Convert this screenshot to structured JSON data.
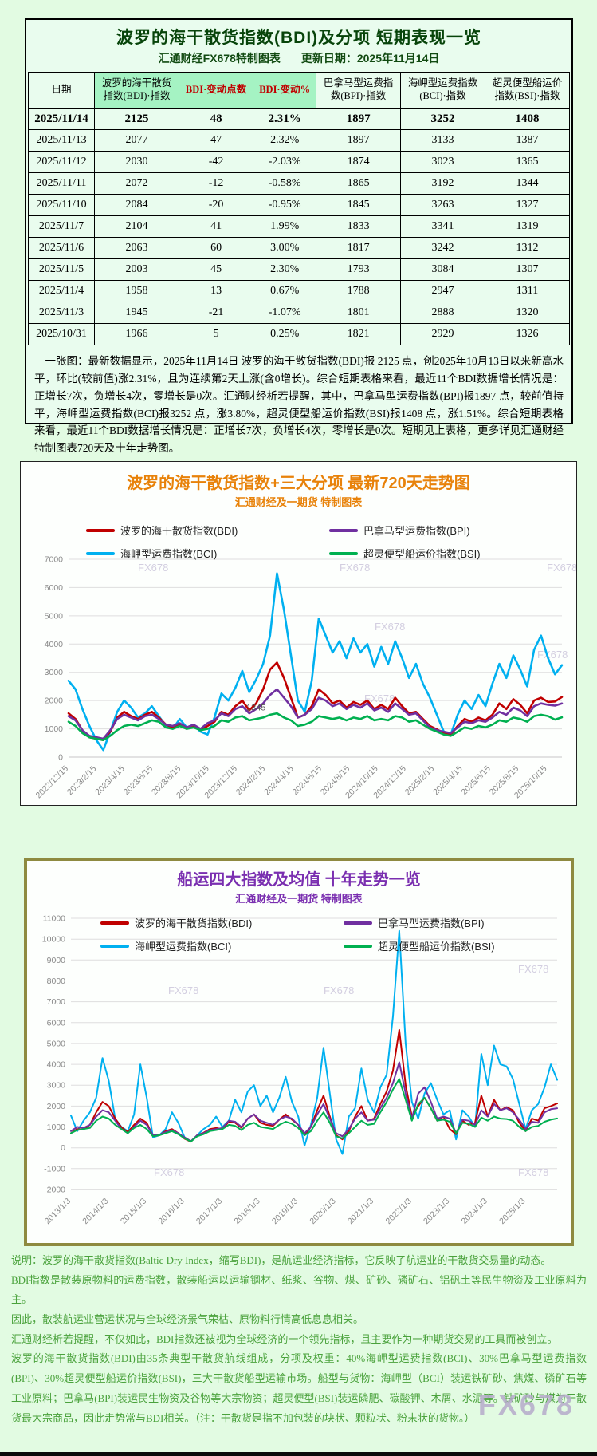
{
  "page": {
    "watermark": "FX678"
  },
  "top_panel": {
    "title": "波罗的海干散货指数(BDI)及分项  短期表现一览",
    "subtitle_left": "汇通财经FX678特制图表",
    "subtitle_right": "更新日期：2025年11月14日",
    "table": {
      "headers": [
        "日期",
        "波罗的海干散货\n指数(BDI)·指数",
        "BDI·变动点数",
        "BDI·变动%",
        "巴拿马型运费指\n数(BPI)·指数",
        "海岬型运费指数\n(BCI)·指数",
        "超灵便型船运价\n指数(BSI)·指数"
      ],
      "rows": [
        [
          "2025/11/14",
          "2125",
          "48",
          "2.31%",
          "1897",
          "3252",
          "1408"
        ],
        [
          "2025/11/13",
          "2077",
          "47",
          "2.32%",
          "1897",
          "3133",
          "1387"
        ],
        [
          "2025/11/12",
          "2030",
          "-42",
          "-2.03%",
          "1874",
          "3023",
          "1365"
        ],
        [
          "2025/11/11",
          "2072",
          "-12",
          "-0.58%",
          "1865",
          "3192",
          "1344"
        ],
        [
          "2025/11/10",
          "2084",
          "-20",
          "-0.95%",
          "1845",
          "3263",
          "1327"
        ],
        [
          "2025/11/7",
          "2104",
          "41",
          "1.99%",
          "1833",
          "3341",
          "1319"
        ],
        [
          "2025/11/6",
          "2063",
          "60",
          "3.00%",
          "1817",
          "3242",
          "1312"
        ],
        [
          "2025/11/5",
          "2003",
          "45",
          "2.30%",
          "1793",
          "3084",
          "1307"
        ],
        [
          "2025/11/4",
          "1958",
          "13",
          "0.67%",
          "1788",
          "2947",
          "1311"
        ],
        [
          "2025/11/3",
          "1945",
          "-21",
          "-1.07%",
          "1801",
          "2888",
          "1320"
        ],
        [
          "2025/10/31",
          "1966",
          "5",
          "0.25%",
          "1821",
          "2929",
          "1326"
        ]
      ]
    },
    "summary": "一张图：最新数据显示，2025年11月14日 波罗的海干散货指数(BDI)报 2125 点，创2025年10月13日以来新高水平，环比(较前值)涨2.31%，且为连续第2天上涨(含0增长)。综合短期表格来看，最近11个BDI数据增长情况是：正增长7次，负增长4次，零增长是0次。汇通财经析若提醒，其中，巴拿马型运费指数(BPI)报1897 点，较前值持平，海岬型运费指数(BCI)报3252 点，涨3.80%，超灵便型船运价指数(BSI)报1408 点，涨1.51%。综合短期表格来看，最近11个BDI数据增长情况是：正增长7次，负增长4次，零增长是0次。短期见上表格，更多详见汇通财经特制图表720天及十年走势图。"
  },
  "chart_data": [
    {
      "type": "line",
      "title": "波罗的海干散货指数+三大分项  最新720天走势图",
      "subtitle": "汇通财经及一期货  特制图表",
      "xlabel": "",
      "ylabel": "",
      "ylim": [
        0,
        7000
      ],
      "yticks": [
        0,
        1000,
        2000,
        3000,
        4000,
        5000,
        6000,
        7000
      ],
      "grid": true,
      "legend_position": "top-inside",
      "watermark": "FX678",
      "annotation": {
        "text": "1345",
        "xfrac": 0.38,
        "y": 1560
      },
      "xticklabels": [
        "2022/12/15",
        "2023/2/15",
        "2023/4/15",
        "2023/6/15",
        "2023/8/15",
        "2023/10/15",
        "2023/12/15",
        "2024/2/15",
        "2024/4/15",
        "2024/6/15",
        "2024/8/15",
        "2024/10/15",
        "2024/12/15",
        "2025/2/15",
        "2025/4/15",
        "2025/6/15",
        "2025/8/15",
        "2025/10/15"
      ],
      "xtick_span": 0.97,
      "series": [
        {
          "name": "波罗的海干散货指数(BDI)",
          "color": "#c00000",
          "values": [
            1550,
            1350,
            950,
            700,
            650,
            600,
            900,
            1400,
            1600,
            1450,
            1350,
            1500,
            1600,
            1400,
            1150,
            1050,
            1150,
            1000,
            1100,
            950,
            1100,
            1250,
            1600,
            1500,
            1800,
            2000,
            1650,
            1900,
            2400,
            3100,
            3346,
            2800,
            2100,
            1400,
            1500,
            1800,
            2400,
            2200,
            1900,
            2000,
            1750,
            1950,
            1850,
            2000,
            1700,
            1850,
            1700,
            2100,
            1800,
            1550,
            1600,
            1350,
            1100,
            980,
            850,
            800,
            1100,
            1350,
            1250,
            1400,
            1300,
            1500,
            1900,
            1700,
            2050,
            1850,
            1550,
            2000,
            2100,
            1950,
            1966,
            2125
          ]
        },
        {
          "name": "巴拿马型运费指数(BPI)",
          "color": "#7030a0",
          "values": [
            1450,
            1300,
            950,
            750,
            700,
            650,
            950,
            1350,
            1500,
            1400,
            1300,
            1450,
            1500,
            1350,
            1150,
            1100,
            1200,
            1050,
            1150,
            1000,
            1200,
            1300,
            1550,
            1450,
            1700,
            1800,
            1550,
            1700,
            1900,
            2200,
            2400,
            2100,
            1800,
            1400,
            1500,
            1700,
            2100,
            2000,
            1800,
            1900,
            1700,
            1850,
            1750,
            1900,
            1650,
            1750,
            1600,
            1900,
            1700,
            1500,
            1550,
            1300,
            1050,
            950,
            900,
            850,
            1050,
            1250,
            1200,
            1300,
            1250,
            1400,
            1600,
            1500,
            1750,
            1650,
            1450,
            1800,
            1900,
            1850,
            1821,
            1897
          ]
        },
        {
          "name": "海岬型运费指数(BCI)",
          "color": "#00b0f0",
          "values": [
            2700,
            2400,
            1700,
            1100,
            600,
            250,
            900,
            1600,
            2000,
            1750,
            1400,
            1550,
            1800,
            1450,
            1100,
            1000,
            1350,
            1050,
            1150,
            900,
            800,
            1400,
            2250,
            2000,
            2450,
            3050,
            2300,
            2750,
            3300,
            4300,
            6500,
            5200,
            3600,
            2000,
            1600,
            2700,
            4900,
            4300,
            3700,
            4100,
            3500,
            4200,
            3700,
            4000,
            3200,
            3900,
            3300,
            4100,
            3500,
            2800,
            3300,
            2600,
            2100,
            1500,
            900,
            800,
            1500,
            2000,
            1700,
            2200,
            1800,
            2600,
            3300,
            2800,
            3600,
            3100,
            2500,
            3800,
            4300,
            3500,
            2929,
            3252
          ]
        },
        {
          "name": "超灵便型船运价指数(BSI)",
          "color": "#00b050",
          "values": [
            1250,
            1100,
            850,
            700,
            650,
            600,
            750,
            950,
            1100,
            1150,
            1100,
            1200,
            1300,
            1250,
            1050,
            1000,
            1100,
            1000,
            1050,
            950,
            1000,
            1100,
            1300,
            1250,
            1400,
            1450,
            1300,
            1350,
            1400,
            1500,
            1550,
            1400,
            1300,
            1100,
            1150,
            1250,
            1450,
            1400,
            1350,
            1400,
            1300,
            1400,
            1350,
            1450,
            1300,
            1350,
            1300,
            1450,
            1400,
            1250,
            1300,
            1150,
            1000,
            900,
            800,
            750,
            900,
            1050,
            1000,
            1100,
            1050,
            1150,
            1300,
            1250,
            1400,
            1350,
            1250,
            1450,
            1500,
            1450,
            1326,
            1408
          ]
        }
      ]
    },
    {
      "type": "line",
      "title": "船运四大指数及均值 十年走势一览",
      "subtitle": "汇通财经及一期货 特制图表",
      "xlabel": "",
      "ylabel": "",
      "ylim": [
        -2000,
        11000
      ],
      "yticks": [
        -2000,
        -1000,
        0,
        1000,
        2000,
        3000,
        4000,
        5000,
        6000,
        7000,
        8000,
        9000,
        10000,
        11000
      ],
      "grid": true,
      "legend_position": "top-inside",
      "watermark": "FX678",
      "xticklabels": [
        "2013/1/3",
        "2014/1/3",
        "2015/1/3",
        "2016/1/3",
        "2017/1/3",
        "2018/1/3",
        "2019/1/3",
        "2020/1/3",
        "2021/1/3",
        "2022/1/3",
        "2023/1/3",
        "2024/1/3",
        "2025/1/3"
      ],
      "xtick_span": 0.935,
      "series": [
        {
          "name": "波罗的海干散货指数(BDI)",
          "color": "#c00000",
          "values": [
            700,
            900,
            880,
            1100,
            1700,
            2200,
            2000,
            1400,
            980,
            750,
            1100,
            1400,
            1200,
            560,
            600,
            800,
            900,
            700,
            430,
            290,
            600,
            720,
            900,
            950,
            900,
            1250,
            1200,
            960,
            1400,
            1600,
            1200,
            1100,
            1050,
            1350,
            1600,
            1350,
            1100,
            600,
            1000,
            1800,
            2500,
            1500,
            600,
            400,
            800,
            1500,
            2000,
            1300,
            1400,
            2100,
            2700,
            3700,
            5650,
            3000,
            1500,
            2000,
            2400,
            1900,
            1300,
            1500,
            900,
            650,
            1300,
            1100,
            1200,
            2500,
            1500,
            2300,
            1800,
            1950,
            1800,
            1200,
            800,
            1400,
            1300,
            1900,
            2000,
            2125
          ]
        },
        {
          "name": "巴拿马型运费指数(BPI)",
          "color": "#7030a0",
          "values": [
            800,
            1000,
            950,
            1100,
            1500,
            1800,
            1700,
            1300,
            900,
            700,
            1000,
            1300,
            1100,
            600,
            620,
            750,
            850,
            700,
            500,
            320,
            600,
            700,
            850,
            900,
            950,
            1300,
            1250,
            1000,
            1400,
            1600,
            1300,
            1200,
            1100,
            1350,
            1500,
            1400,
            1100,
            700,
            1000,
            1600,
            2100,
            1400,
            700,
            550,
            900,
            1400,
            1700,
            1300,
            1350,
            1900,
            2400,
            3100,
            4100,
            2600,
            1400,
            2600,
            2900,
            2200,
            1400,
            1500,
            1400,
            700,
            1350,
            1300,
            1100,
            1800,
            1500,
            2100,
            1800,
            1900,
            1700,
            1350,
            900,
            1250,
            1200,
            1700,
            1850,
            1897
          ]
        },
        {
          "name": "海岬型运费指数(BCI)",
          "color": "#00b0f0",
          "values": [
            1550,
            800,
            1300,
            1700,
            2400,
            4300,
            3200,
            1400,
            1000,
            800,
            1600,
            4000,
            2400,
            500,
            600,
            900,
            1700,
            1200,
            500,
            300,
            600,
            900,
            1100,
            1500,
            1000,
            1300,
            2300,
            1700,
            2700,
            3000,
            2000,
            2500,
            1700,
            2400,
            3400,
            2200,
            1500,
            100,
            1100,
            2400,
            4800,
            2600,
            400,
            -300,
            1500,
            1900,
            3800,
            2300,
            1700,
            2900,
            3500,
            6300,
            10400,
            5000,
            2200,
            1400,
            2600,
            3100,
            2300,
            1600,
            1800,
            400,
            1800,
            1500,
            1000,
            4500,
            3000,
            4900,
            4000,
            3900,
            3300,
            2100,
            900,
            1800,
            2100,
            2900,
            4000,
            3252
          ]
        },
        {
          "name": "超灵便型船运价指数(BSI)",
          "color": "#00b050",
          "values": [
            700,
            850,
            900,
            950,
            1300,
            1500,
            1400,
            1100,
            900,
            700,
            950,
            1100,
            900,
            550,
            600,
            700,
            800,
            650,
            450,
            300,
            550,
            650,
            800,
            850,
            900,
            1100,
            1050,
            850,
            1100,
            1200,
            1000,
            950,
            900,
            1100,
            1250,
            1150,
            950,
            600,
            800,
            1300,
            1700,
            1200,
            550,
            450,
            700,
            1000,
            1300,
            1100,
            1150,
            1700,
            2200,
            2800,
            3300,
            2300,
            1300,
            2100,
            2400,
            1900,
            1300,
            1350,
            1250,
            700,
            1200,
            1150,
            1000,
            1450,
            1300,
            1500,
            1400,
            1380,
            1300,
            1000,
            800,
            1000,
            1050,
            1250,
            1350,
            1408
          ]
        }
      ]
    }
  ],
  "footer": {
    "paragraphs": [
      "说明：波罗的海干散货指数(Baltic Dry Index，缩写BDI)，是航运业经济指标，它反映了航运业的干散货交易量的动态。",
      "BDI指数是散装原物料的运费指数，散装船运以运输钢材、纸浆、谷物、煤、矿砂、磷矿石、铝矾土等民生物资及工业原料为主。",
      "因此，散装航运业营运状况与全球经济景气荣枯、原物料行情高低息息相关。",
      "汇通财经析若提醒，不仅如此，BDI指数还被视为全球经济的一个领先指标，且主要作为一种期货交易的工具而被创立。",
      "波罗的海干散货指数(BDI)由35条典型干散货航线组成，分项及权重：40%海岬型运费指数(BCI)、30%巴拿马型运费指数(BPI)、30%超灵便型船运价指数(BSI)，三大干散货船型运输市场。船型与货物：海岬型（BCI）装运铁矿砂、焦煤、磷矿石等工业原料；巴拿马(BPI)装运民生物资及谷物等大宗物资；超灵便型(BSI)装运磷肥、碳酸钾、木屑、水泥等。铁矿砂与煤为干散货最大宗商品，因此走势常与BDI相关。（注：干散货是指不加包装的块状、颗粒状、粉末状的货物。）"
    ]
  }
}
